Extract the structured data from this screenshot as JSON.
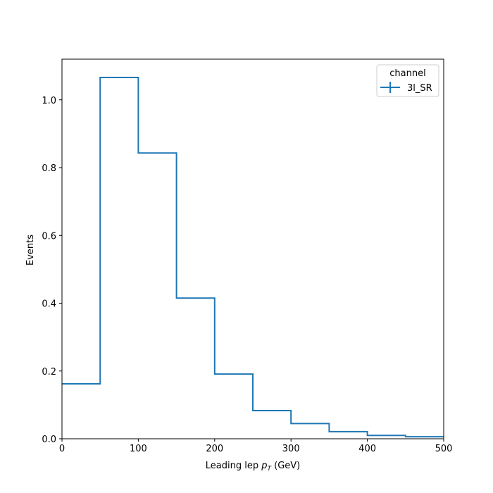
{
  "chart_data": {
    "type": "histogram-step",
    "xlabel_main": "Leading lep ",
    "xlabel_math": "p",
    "xlabel_sub": "T",
    "xlabel_unit": " (GeV)",
    "ylabel": "Events",
    "xlim": [
      0,
      500
    ],
    "ylim": [
      0,
      1.12
    ],
    "xticks": [
      0,
      100,
      200,
      300,
      400,
      500
    ],
    "xtick_labels": [
      "0",
      "100",
      "200",
      "300",
      "400",
      "500"
    ],
    "yticks": [
      0.0,
      0.2,
      0.4,
      0.6,
      0.8,
      1.0
    ],
    "ytick_labels": [
      "0.0",
      "0.2",
      "0.4",
      "0.6",
      "0.8",
      "1.0"
    ],
    "bin_edges": [
      0,
      50,
      100,
      150,
      200,
      250,
      300,
      350,
      400,
      450,
      500
    ],
    "series": [
      {
        "name": "3l_SR",
        "values": [
          0.162,
          1.066,
          0.843,
          0.415,
          0.191,
          0.083,
          0.045,
          0.021,
          0.01,
          0.006
        ],
        "color": "#1f77b4"
      }
    ],
    "legend": {
      "title": "channel",
      "position": "upper right"
    },
    "grid": false
  }
}
